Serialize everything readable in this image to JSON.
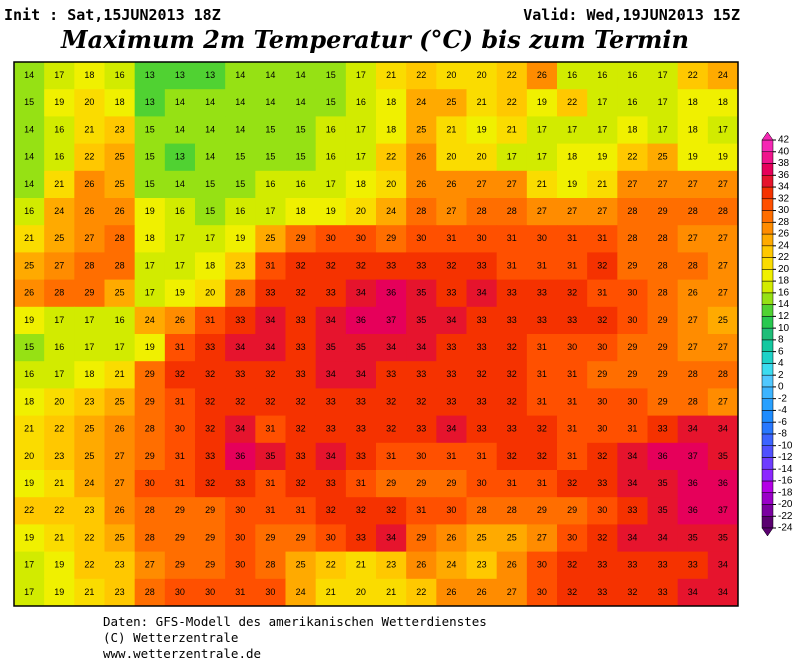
{
  "header": {
    "init": "Init : Sat,15JUN2013 18Z",
    "valid": "Valid: Wed,19JUN2013 15Z",
    "title": "Maximum 2m Temperatur (°C) bis zum Termin"
  },
  "map": {
    "rows": [
      [
        14,
        17,
        18,
        16,
        13,
        13,
        13,
        14,
        14,
        14,
        15,
        17,
        21,
        22,
        20,
        20,
        22,
        26,
        16,
        16,
        16,
        17,
        22,
        24
      ],
      [
        15,
        19,
        20,
        18,
        13,
        14,
        14,
        14,
        14,
        14,
        15,
        16,
        18,
        24,
        25,
        21,
        22,
        19,
        22,
        17,
        16,
        17,
        18,
        18
      ],
      [
        14,
        16,
        21,
        23,
        15,
        14,
        14,
        14,
        15,
        15,
        16,
        17,
        18,
        25,
        21,
        19,
        21,
        17,
        17,
        17,
        18,
        17,
        18,
        17
      ],
      [
        14,
        16,
        22,
        25,
        15,
        13,
        14,
        15,
        15,
        15,
        16,
        17,
        22,
        26,
        20,
        20,
        17,
        17,
        18,
        19,
        22,
        25,
        19,
        19
      ],
      [
        14,
        21,
        26,
        25,
        15,
        14,
        15,
        15,
        16,
        16,
        17,
        18,
        20,
        26,
        26,
        27,
        27,
        21,
        19,
        21,
        27,
        27,
        27,
        27
      ],
      [
        16,
        24,
        26,
        26,
        19,
        16,
        15,
        16,
        17,
        18,
        19,
        20,
        24,
        28,
        27,
        28,
        28,
        27,
        27,
        27,
        28,
        29,
        28,
        28
      ],
      [
        21,
        25,
        27,
        28,
        18,
        17,
        17,
        19,
        25,
        29,
        30,
        30,
        29,
        30,
        31,
        30,
        31,
        30,
        31,
        31,
        28,
        28,
        27,
        27
      ],
      [
        25,
        27,
        28,
        28,
        17,
        17,
        18,
        23,
        31,
        32,
        32,
        32,
        33,
        33,
        32,
        33,
        31,
        31,
        31,
        32,
        29,
        28,
        28,
        27
      ],
      [
        26,
        28,
        29,
        25,
        17,
        19,
        20,
        28,
        33,
        32,
        33,
        34,
        36,
        35,
        33,
        34,
        33,
        33,
        32,
        31,
        30,
        28,
        26,
        27
      ],
      [
        19,
        17,
        17,
        16,
        24,
        26,
        31,
        33,
        34,
        33,
        34,
        36,
        37,
        35,
        34,
        33,
        33,
        33,
        33,
        32,
        30,
        29,
        27,
        25
      ],
      [
        15,
        16,
        17,
        17,
        19,
        31,
        33,
        34,
        34,
        33,
        35,
        35,
        34,
        34,
        33,
        33,
        32,
        31,
        30,
        30,
        29,
        29,
        27,
        27
      ],
      [
        16,
        17,
        18,
        21,
        29,
        32,
        32,
        33,
        32,
        33,
        34,
        34,
        33,
        33,
        33,
        32,
        32,
        31,
        31,
        29,
        29,
        29,
        28,
        28
      ],
      [
        18,
        20,
        23,
        25,
        29,
        31,
        32,
        32,
        32,
        32,
        33,
        33,
        32,
        32,
        33,
        33,
        32,
        31,
        31,
        30,
        30,
        29,
        28,
        27
      ],
      [
        21,
        22,
        25,
        26,
        28,
        30,
        32,
        34,
        31,
        32,
        33,
        33,
        32,
        33,
        34,
        33,
        33,
        32,
        31,
        30,
        31,
        33,
        34,
        34
      ],
      [
        20,
        23,
        25,
        27,
        29,
        31,
        33,
        36,
        35,
        33,
        34,
        33,
        31,
        30,
        31,
        31,
        32,
        32,
        31,
        32,
        34,
        36,
        37,
        35
      ],
      [
        19,
        21,
        24,
        27,
        30,
        31,
        32,
        33,
        31,
        32,
        33,
        31,
        29,
        29,
        29,
        30,
        31,
        31,
        32,
        33,
        34,
        35,
        36,
        36
      ],
      [
        22,
        22,
        23,
        26,
        28,
        29,
        29,
        30,
        31,
        31,
        32,
        32,
        32,
        31,
        30,
        28,
        28,
        29,
        29,
        30,
        33,
        35,
        36,
        37
      ],
      [
        19,
        21,
        22,
        25,
        28,
        29,
        29,
        30,
        29,
        29,
        30,
        33,
        34,
        29,
        26,
        25,
        25,
        27,
        30,
        32,
        34,
        34,
        35,
        35
      ],
      [
        17,
        19,
        22,
        23,
        27,
        29,
        29,
        30,
        28,
        25,
        22,
        21,
        23,
        26,
        24,
        23,
        26,
        30,
        32,
        33,
        33,
        33,
        33,
        34
      ],
      [
        17,
        19,
        21,
        23,
        28,
        30,
        30,
        31,
        30,
        24,
        21,
        20,
        21,
        22,
        26,
        26,
        27,
        30,
        32,
        33,
        32,
        33,
        34,
        34
      ]
    ]
  },
  "colorbar": {
    "levels": [
      -24,
      -22,
      -20,
      -18,
      -16,
      -14,
      -12,
      -10,
      -8,
      -6,
      -4,
      -2,
      0,
      2,
      4,
      6,
      8,
      10,
      12,
      14,
      16,
      18,
      20,
      22,
      24,
      26,
      28,
      30,
      32,
      34,
      36,
      38,
      40,
      42
    ],
    "colors": [
      "#5a0070",
      "#7a00a0",
      "#9a00c8",
      "#b400e6",
      "#8c28ff",
      "#6e3cff",
      "#5050ff",
      "#3c64ff",
      "#2878ff",
      "#1e8cff",
      "#28a0ff",
      "#3cb4ff",
      "#50c8ff",
      "#3cdcf0",
      "#1ed2c8",
      "#14c8a0",
      "#1ebe78",
      "#28c850",
      "#50d232",
      "#96e114",
      "#d2eb00",
      "#f0f000",
      "#fadc00",
      "#ffc800",
      "#ffaa00",
      "#ff8c00",
      "#ff6e00",
      "#ff5000",
      "#f53200",
      "#e6142d",
      "#e6005a",
      "#f0148c",
      "#f528b4"
    ]
  },
  "footer": {
    "lines": [
      "Daten: GFS-Modell des amerikanischen Wetterdienstes",
      "(C) Wetterzentrale",
      "www.wetterzentrale.de"
    ]
  }
}
